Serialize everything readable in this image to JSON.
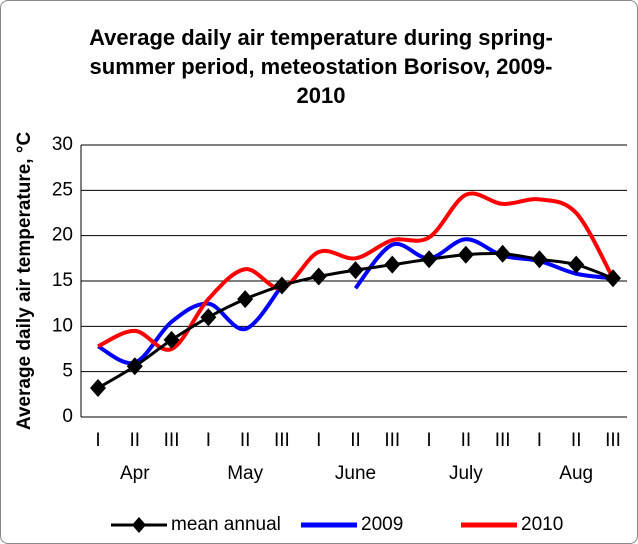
{
  "chart_data": {
    "type": "line",
    "title": "Average daily air temperature during spring-summer period, meteostation Borisov, 2009-2010",
    "y_label": "Average daily air temperature, °C",
    "categories": [
      "I",
      "II",
      "III",
      "I",
      "II",
      "III",
      "I",
      "II",
      "III",
      "I",
      "II",
      "III",
      "I",
      "II",
      "III"
    ],
    "months": [
      "Apr",
      "May",
      "June",
      "July",
      "Aug"
    ],
    "series": [
      {
        "name": "mean annual",
        "color": "#000000",
        "marker": "diamond",
        "values": [
          3.2,
          5.6,
          8.5,
          11,
          13,
          14.5,
          15.5,
          16.2,
          16.8,
          17.4,
          17.9,
          18.0,
          17.4,
          16.8,
          15.3
        ]
      },
      {
        "name": "2009",
        "color": "#0000ff",
        "values": [
          7.8,
          6.0,
          10.5,
          12.5,
          9.7,
          14.5,
          null,
          14.2,
          19.0,
          17.5,
          19.6,
          17.8,
          17.2,
          15.8,
          15.3
        ]
      },
      {
        "name": "2010",
        "color": "#ff0000",
        "values": [
          7.8,
          9.5,
          7.5,
          13,
          16.3,
          14.2,
          18.2,
          17.5,
          19.5,
          19.8,
          24.5,
          23.5,
          24.0,
          22.5,
          15.3
        ]
      }
    ],
    "ylim": [
      0,
      30
    ],
    "yticks": [
      0,
      5,
      10,
      15,
      20,
      25,
      30
    ],
    "grid": true,
    "legend": "bottom"
  }
}
